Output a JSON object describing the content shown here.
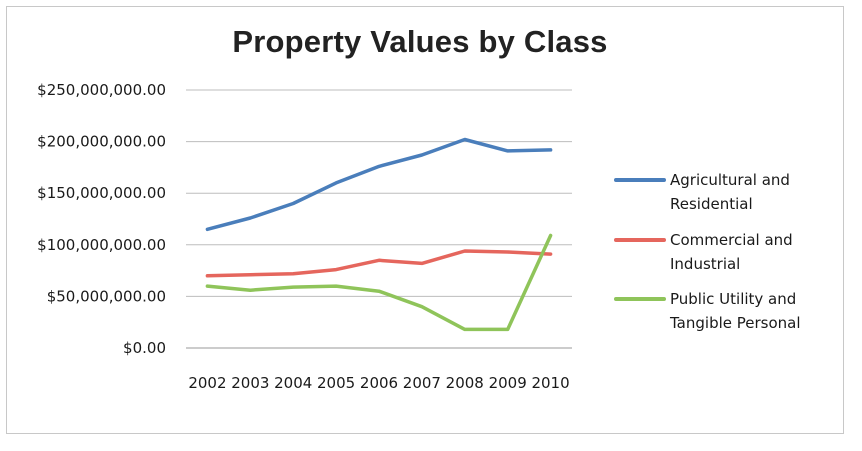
{
  "chart_data": {
    "type": "line",
    "title": "Property Values by Class",
    "xlabel": "",
    "ylabel": "",
    "categories": [
      "2002",
      "2003",
      "2004",
      "2005",
      "2006",
      "2007",
      "2008",
      "2009",
      "2010"
    ],
    "ylim": [
      0,
      250000000
    ],
    "y_ticks": [
      {
        "value": 0,
        "label": "$0.00"
      },
      {
        "value": 50000000,
        "label": "$50,000,000.00"
      },
      {
        "value": 100000000,
        "label": "$100,000,000.00"
      },
      {
        "value": 150000000,
        "label": "$150,000,000.00"
      },
      {
        "value": 200000000,
        "label": "$200,000,000.00"
      },
      {
        "value": 250000000,
        "label": "$250,000,000.00"
      }
    ],
    "grid": true,
    "legend_position": "right",
    "series": [
      {
        "name": "Agricultural and Residential",
        "legend_lines": [
          "Agricultural and",
          "Residential"
        ],
        "color": "#4a7ebb",
        "values": [
          115000000,
          126000000,
          140000000,
          160000000,
          176000000,
          187000000,
          202000000,
          191000000,
          192000000
        ]
      },
      {
        "name": "Commercial and Industrial",
        "legend_lines": [
          "Commercial and",
          "Industrial"
        ],
        "color": "#e5665d",
        "values": [
          70000000,
          71000000,
          72000000,
          76000000,
          85000000,
          82000000,
          94000000,
          93000000,
          91000000
        ]
      },
      {
        "name": "Public Utility and Tangible Personal",
        "legend_lines": [
          "Public Utility and",
          "Tangible Personal"
        ],
        "color": "#8fc45a",
        "values": [
          60000000,
          56000000,
          59000000,
          60000000,
          55000000,
          40000000,
          18000000,
          18000000,
          109000000
        ]
      }
    ]
  }
}
